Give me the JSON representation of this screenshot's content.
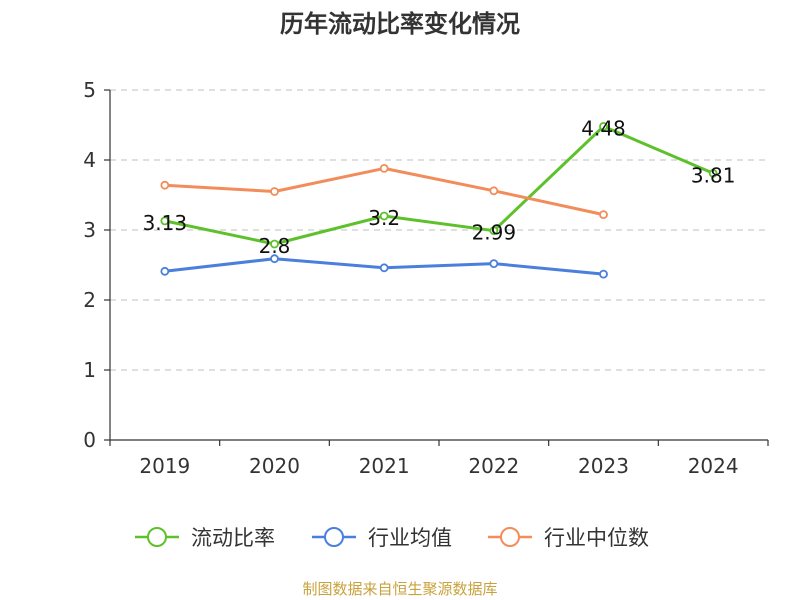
{
  "chart_data": {
    "type": "line",
    "title": "历年流动比率变化情况",
    "categories": [
      "2019",
      "2020",
      "2021",
      "2022",
      "2023",
      "2024"
    ],
    "ylim": [
      0,
      5
    ],
    "yticks": [
      "0",
      "1",
      "2",
      "3",
      "4",
      "5"
    ],
    "grid": true,
    "legend_position": "bottom",
    "series": [
      {
        "name": "流动比率",
        "color": "#5ec12c",
        "values": [
          3.13,
          2.8,
          3.2,
          2.99,
          4.48,
          3.81
        ],
        "labels": [
          "3.13",
          "2.8",
          "3.2",
          "2.99",
          "4.48",
          "3.81"
        ],
        "show_labels": true
      },
      {
        "name": "行业均值",
        "color": "#4a7fdc",
        "values": [
          2.41,
          2.59,
          2.46,
          2.52,
          2.37,
          null
        ],
        "show_labels": false
      },
      {
        "name": "行业中位数",
        "color": "#f28c5a",
        "values": [
          3.64,
          3.55,
          3.88,
          3.56,
          3.22,
          null
        ],
        "show_labels": false
      }
    ]
  },
  "source": "制图数据来自恒生聚源数据库"
}
